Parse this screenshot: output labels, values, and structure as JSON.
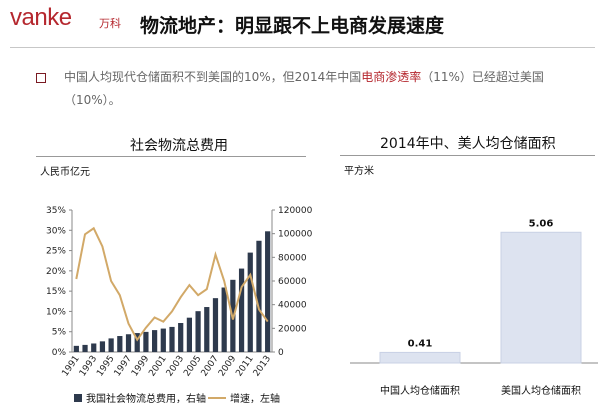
{
  "header": {
    "logo_text": "vanke",
    "logo_cn": "万科",
    "title": "物流地产：明显跟不上电商发展速度"
  },
  "bullet": {
    "part1": "中国人均现代仓储面积不到美国的10%，但2014年中国",
    "highlight": "电商渗透率",
    "part2": "（11%）已经超过美国",
    "line2": "（10%）。"
  },
  "colors": {
    "brand": "#b5272e",
    "bar": "#2e3a4d",
    "line": "#d2a968",
    "bar2": "#dde3f0"
  },
  "chart_data": [
    {
      "type": "bar",
      "title": "社会物流总费用",
      "ylabel": "人民币亿元",
      "categories": [
        "1991",
        "1992",
        "1993",
        "1994",
        "1995",
        "1996",
        "1997",
        "1998",
        "1999",
        "2000",
        "2001",
        "2002",
        "2003",
        "2004",
        "2005",
        "2006",
        "2007",
        "2008",
        "2009",
        "2010",
        "2011",
        "2012",
        "2013"
      ],
      "x_tick_labels": [
        "1991",
        "1993",
        "1995",
        "1997",
        "1999",
        "2001",
        "2003",
        "2005",
        "2007",
        "2009",
        "2011",
        "2013"
      ],
      "left_axis": {
        "ylim": [
          0,
          0.35
        ],
        "ticks": [
          "0%",
          "5%",
          "10%",
          "15%",
          "20%",
          "25%",
          "30%",
          "35%"
        ]
      },
      "right_axis": {
        "ylim": [
          0,
          120000
        ],
        "ticks": [
          "0",
          "20000",
          "40000",
          "60000",
          "80000",
          "100000",
          "120000"
        ]
      },
      "series": [
        {
          "name": "我国社会物流总费用，右轴",
          "type": "bar",
          "axis": "right",
          "values": [
            5200,
            6000,
            7200,
            9000,
            11500,
            13500,
            15000,
            16000,
            17000,
            18500,
            19800,
            21200,
            24500,
            29000,
            34500,
            38000,
            45500,
            54500,
            61000,
            70500,
            84000,
            94000,
            102000
          ]
        },
        {
          "name": "增速，左轴",
          "type": "line",
          "axis": "left",
          "values": [
            0.18,
            0.29,
            0.305,
            0.26,
            0.175,
            0.14,
            0.07,
            0.03,
            0.06,
            0.085,
            0.075,
            0.1,
            0.135,
            0.165,
            0.14,
            0.155,
            0.24,
            0.175,
            0.08,
            0.16,
            0.19,
            0.105,
            0.075
          ]
        }
      ],
      "grid": false,
      "legend": "bottom"
    },
    {
      "type": "bar",
      "title": "2014年中、美人均仓储面积",
      "ylabel": "平方米",
      "categories": [
        "中国人均仓储面积",
        "美国人均仓储面积"
      ],
      "values": [
        0.41,
        5.06
      ],
      "data_labels": [
        "0.41",
        "5.06"
      ],
      "ylim": [
        0,
        6
      ]
    }
  ]
}
